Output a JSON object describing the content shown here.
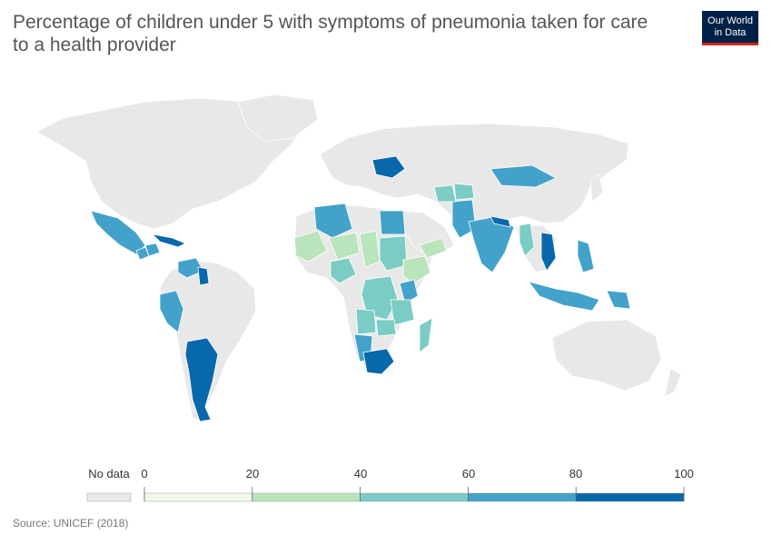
{
  "header": {
    "title": "Percentage of children under 5 with symptoms of pneumonia taken for care to a health provider"
  },
  "logo": {
    "line1": "Our World",
    "line2": "in Data"
  },
  "colors": {
    "no_data": "#e8e8e8",
    "bins": [
      "#f0f9e8",
      "#bae4bc",
      "#7bccc4",
      "#43a2ca",
      "#0868ac"
    ],
    "border": "#ffffff",
    "stroke_dark": "#8a8a8a"
  },
  "legend": {
    "no_data_label": "No data",
    "ticks": [
      "0",
      "20",
      "40",
      "60",
      "80",
      "100"
    ]
  },
  "map_data": {
    "metric": "Percentage of children under 5 with symptoms of pneumonia taken for care to a health provider",
    "scale": [
      0,
      20,
      40,
      60,
      80,
      100
    ],
    "regions": [
      {
        "name": "Mexico",
        "bin": 3
      },
      {
        "name": "Cuba",
        "bin": 4
      },
      {
        "name": "Guatemala",
        "bin": 3
      },
      {
        "name": "Honduras",
        "bin": 3
      },
      {
        "name": "Venezuela",
        "bin": 3
      },
      {
        "name": "Guyana",
        "bin": 4
      },
      {
        "name": "Peru",
        "bin": 3
      },
      {
        "name": "Argentina",
        "bin": 4
      },
      {
        "name": "Ukraine",
        "bin": 4
      },
      {
        "name": "Algeria",
        "bin": 3
      },
      {
        "name": "Mali",
        "bin": 1
      },
      {
        "name": "Niger",
        "bin": 1
      },
      {
        "name": "Nigeria",
        "bin": 2
      },
      {
        "name": "Chad",
        "bin": 1
      },
      {
        "name": "Sudan",
        "bin": 2
      },
      {
        "name": "Egypt",
        "bin": 3
      },
      {
        "name": "Ethiopia",
        "bin": 1
      },
      {
        "name": "DR Congo",
        "bin": 2
      },
      {
        "name": "Kenya",
        "bin": 3
      },
      {
        "name": "Tanzania",
        "bin": 2
      },
      {
        "name": "Angola",
        "bin": 2
      },
      {
        "name": "Zambia",
        "bin": 2
      },
      {
        "name": "Namibia",
        "bin": 3
      },
      {
        "name": "South Africa",
        "bin": 4
      },
      {
        "name": "Madagascar",
        "bin": 2
      },
      {
        "name": "Yemen",
        "bin": 1
      },
      {
        "name": "Pakistan",
        "bin": 3
      },
      {
        "name": "India",
        "bin": 3
      },
      {
        "name": "Nepal",
        "bin": 4
      },
      {
        "name": "Myanmar",
        "bin": 2
      },
      {
        "name": "Vietnam",
        "bin": 4
      },
      {
        "name": "Mongolia",
        "bin": 3
      },
      {
        "name": "Indonesia",
        "bin": 3
      },
      {
        "name": "Philippines",
        "bin": 3
      },
      {
        "name": "Papua New Guinea",
        "bin": 3
      },
      {
        "name": "Turkmenistan",
        "bin": 2
      },
      {
        "name": "Uzbekistan",
        "bin": 2
      }
    ]
  },
  "source": {
    "text": "Source: UNICEF (2018)"
  }
}
